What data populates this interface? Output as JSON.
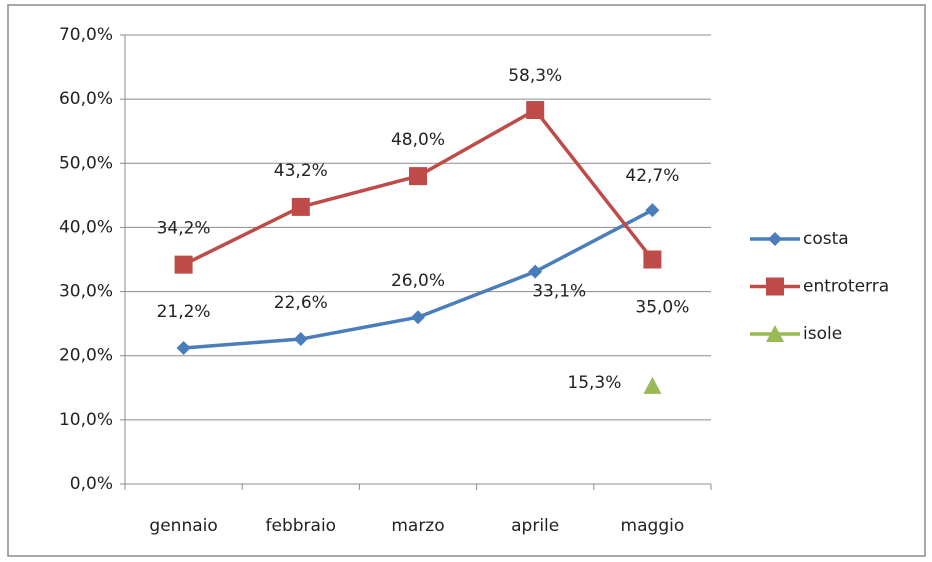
{
  "chart_data": {
    "type": "line",
    "categories": [
      "gennaio",
      "febbraio",
      "marzo",
      "aprile",
      "maggio"
    ],
    "series": [
      {
        "name": "costa",
        "color": "#4a7ebb",
        "marker": "diamond",
        "values": [
          21.2,
          22.6,
          26.0,
          33.1,
          42.7
        ],
        "value_labels": [
          "21,2%",
          "22,6%",
          "26,0%",
          "33,1%",
          "42,7%"
        ]
      },
      {
        "name": "entroterra",
        "color": "#be4b48",
        "marker": "square",
        "values": [
          34.2,
          43.2,
          48.0,
          58.3,
          35.0
        ],
        "value_labels": [
          "34,2%",
          "43,2%",
          "48,0%",
          "58,3%",
          "35,0%"
        ]
      },
      {
        "name": "isole",
        "color": "#98b954",
        "marker": "triangle",
        "values": [
          null,
          null,
          null,
          null,
          15.3
        ],
        "value_labels": [
          null,
          null,
          null,
          null,
          "15,3%"
        ]
      }
    ],
    "ylim": [
      0,
      70
    ],
    "yticks": [
      {
        "value": 0,
        "label": "0,0%"
      },
      {
        "value": 10,
        "label": "10,0%"
      },
      {
        "value": 20,
        "label": "20,0%"
      },
      {
        "value": 30,
        "label": "30,0%"
      },
      {
        "value": 40,
        "label": "40,0%"
      },
      {
        "value": 50,
        "label": "50,0%"
      },
      {
        "value": 60,
        "label": "60,0%"
      },
      {
        "value": 70,
        "label": "70,0%"
      }
    ],
    "grid": true,
    "legend": "right"
  }
}
